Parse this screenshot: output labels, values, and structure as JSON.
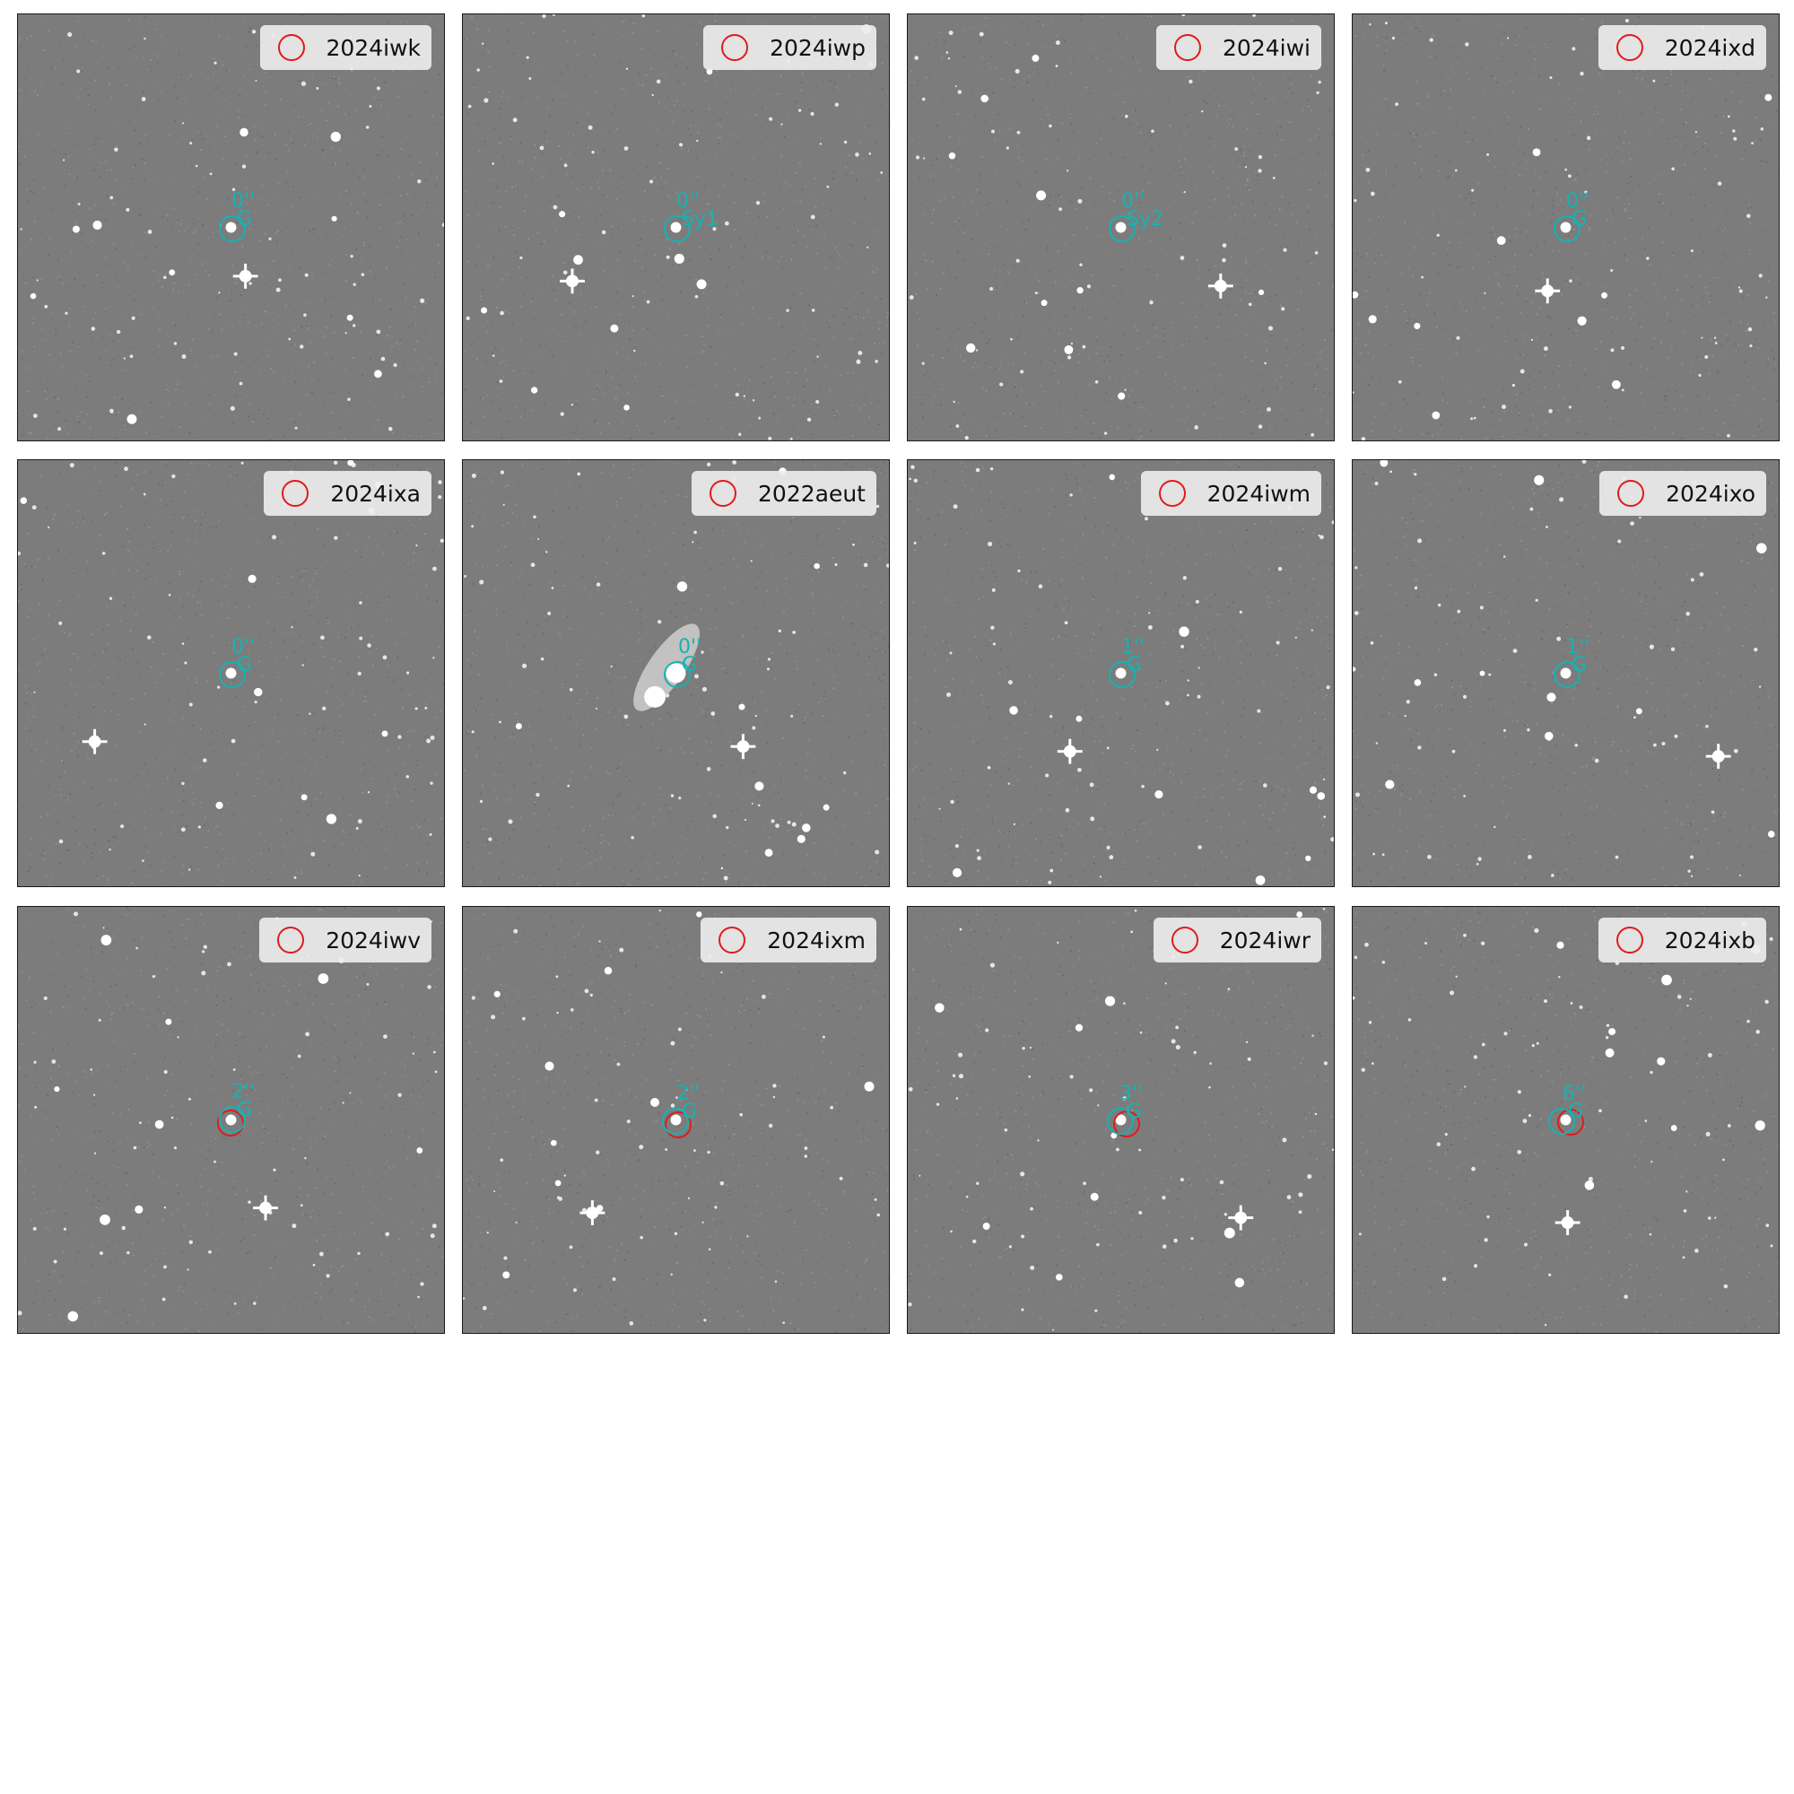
{
  "figure": {
    "panels": [
      {
        "name": "2024iwk",
        "separation": "0''",
        "host_type": "G",
        "legend_marker_color": "#e01b1b",
        "host_marker_color": "#17b2b2"
      },
      {
        "name": "2024iwp",
        "separation": "0''",
        "host_type": "Sy1",
        "legend_marker_color": "#e01b1b",
        "host_marker_color": "#17b2b2"
      },
      {
        "name": "2024iwi",
        "separation": "0''",
        "host_type": "Sy2",
        "legend_marker_color": "#e01b1b",
        "host_marker_color": "#17b2b2"
      },
      {
        "name": "2024ixd",
        "separation": "0''",
        "host_type": "G",
        "legend_marker_color": "#e01b1b",
        "host_marker_color": "#17b2b2"
      },
      {
        "name": "2024ixa",
        "separation": "0''",
        "host_type": "G",
        "legend_marker_color": "#e01b1b",
        "host_marker_color": "#17b2b2"
      },
      {
        "name": "2022aeut",
        "separation": "0''",
        "host_type": "G",
        "legend_marker_color": "#e01b1b",
        "host_marker_color": "#17b2b2"
      },
      {
        "name": "2024iwm",
        "separation": "1''",
        "host_type": "G",
        "legend_marker_color": "#e01b1b",
        "host_marker_color": "#17b2b2"
      },
      {
        "name": "2024ixo",
        "separation": "1''",
        "host_type": "G",
        "legend_marker_color": "#e01b1b",
        "host_marker_color": "#17b2b2"
      },
      {
        "name": "2024iwv",
        "separation": "2''",
        "host_type": "G",
        "legend_marker_color": "#e01b1b",
        "host_marker_color": "#17b2b2"
      },
      {
        "name": "2024ixm",
        "separation": "2''",
        "host_type": "G",
        "legend_marker_color": "#e01b1b",
        "host_marker_color": "#17b2b2"
      },
      {
        "name": "2024iwr",
        "separation": "3''",
        "host_type": "G",
        "legend_marker_color": "#e01b1b",
        "host_marker_color": "#17b2b2"
      },
      {
        "name": "2024ixb",
        "separation": "6''",
        "host_type": "G",
        "legend_marker_color": "#e01b1b",
        "host_marker_color": "#17b2b2"
      }
    ]
  }
}
